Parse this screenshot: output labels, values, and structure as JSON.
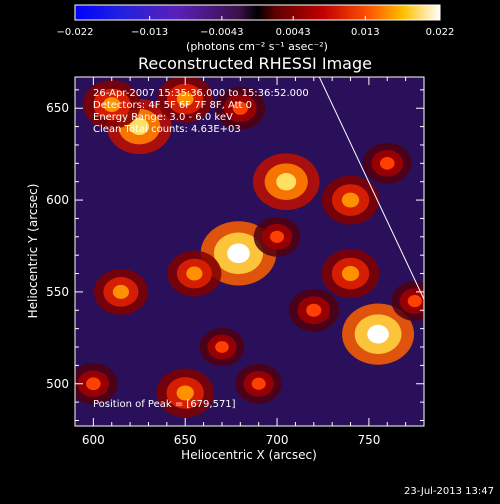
{
  "chart_data": {
    "type": "heatmap",
    "title": "Reconstructed RHESSI Image",
    "xlabel": "Heliocentric X (arcsec)",
    "ylabel": "Heliocentric Y (arcsec)",
    "xlim": [
      590,
      780
    ],
    "ylim": [
      477,
      667
    ],
    "xticks": [
      600,
      650,
      700,
      750
    ],
    "yticks": [
      500,
      550,
      600,
      650
    ],
    "colorbar": {
      "range": [
        -0.022,
        0.022
      ],
      "tick_labels": [
        "−0.022",
        "−0.013",
        "−0.0043",
        "0.0043",
        "0.013",
        "0.022"
      ],
      "tick_values": [
        -0.022,
        -0.013,
        -0.0043,
        0.0043,
        0.013,
        0.022
      ],
      "label": "(photons cm⁻² s⁻¹ asec⁻²)"
    },
    "annotations": [
      "26-Apr-2007 15:35:36.000 to 15:36:52.000",
      "Detectors: 4F 5F 6F 7F 8F, Att 0",
      "Energy Range: 3.0 - 6.0 keV",
      "Clean     Total counts: 4.63E+03"
    ],
    "peak_label": "Position of Peak = [679,571]",
    "peak": [
      679,
      571
    ],
    "limb_line": [
      [
        723,
        667
      ],
      [
        780,
        546
      ]
    ],
    "blobs": [
      {
        "x": 625,
        "y": 640,
        "v": 0.016
      },
      {
        "x": 610,
        "y": 652,
        "v": 0.012
      },
      {
        "x": 650,
        "y": 655,
        "v": 0.011
      },
      {
        "x": 680,
        "y": 650,
        "v": 0.008
      },
      {
        "x": 705,
        "y": 610,
        "v": 0.017
      },
      {
        "x": 740,
        "y": 600,
        "v": 0.012
      },
      {
        "x": 760,
        "y": 620,
        "v": 0.007
      },
      {
        "x": 679,
        "y": 571,
        "v": 0.022
      },
      {
        "x": 655,
        "y": 560,
        "v": 0.01
      },
      {
        "x": 700,
        "y": 580,
        "v": 0.006
      },
      {
        "x": 740,
        "y": 560,
        "v": 0.012
      },
      {
        "x": 720,
        "y": 540,
        "v": 0.008
      },
      {
        "x": 755,
        "y": 527,
        "v": 0.02
      },
      {
        "x": 775,
        "y": 545,
        "v": 0.006
      },
      {
        "x": 615,
        "y": 550,
        "v": 0.01
      },
      {
        "x": 650,
        "y": 495,
        "v": 0.012
      },
      {
        "x": 690,
        "y": 500,
        "v": 0.006
      },
      {
        "x": 670,
        "y": 520,
        "v": 0.005
      },
      {
        "x": 600,
        "y": 500,
        "v": 0.007
      }
    ]
  },
  "footer": {
    "timestamp": "23-Jul-2013 13:47"
  }
}
